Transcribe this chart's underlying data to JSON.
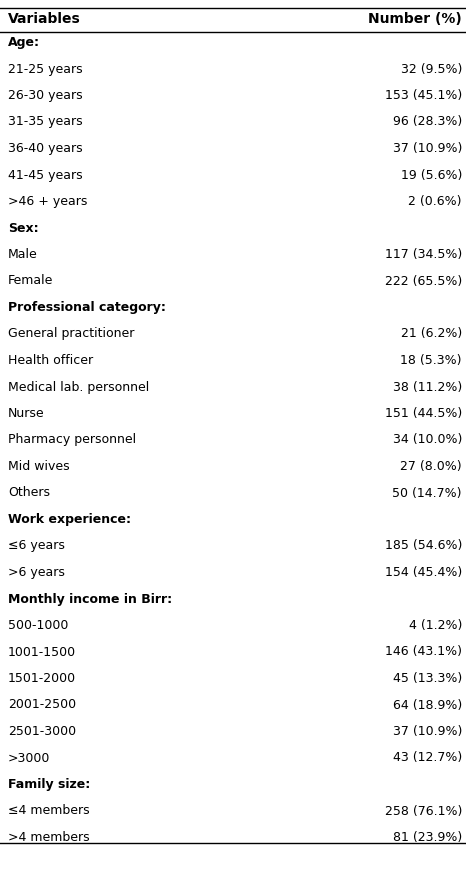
{
  "header": [
    "Variables",
    "Number (%)"
  ],
  "rows": [
    {
      "label": "Age:",
      "value": "",
      "bold": true
    },
    {
      "label": "21-25 years",
      "value": "32 (9.5%)",
      "bold": false
    },
    {
      "label": "26-30 years",
      "value": "153 (45.1%)",
      "bold": false
    },
    {
      "label": "31-35 years",
      "value": "96 (28.3%)",
      "bold": false
    },
    {
      "label": "36-40 years",
      "value": "37 (10.9%)",
      "bold": false
    },
    {
      "label": "41-45 years",
      "value": "19 (5.6%)",
      "bold": false
    },
    {
      "label": ">46 + years",
      "value": "2 (0.6%)",
      "bold": false
    },
    {
      "label": "Sex:",
      "value": "",
      "bold": true
    },
    {
      "label": "Male",
      "value": "117 (34.5%)",
      "bold": false
    },
    {
      "label": "Female",
      "value": "222 (65.5%)",
      "bold": false
    },
    {
      "label": "Professional category:",
      "value": "",
      "bold": true
    },
    {
      "label": "General practitioner",
      "value": "21 (6.2%)",
      "bold": false
    },
    {
      "label": "Health officer",
      "value": "18 (5.3%)",
      "bold": false
    },
    {
      "label": "Medical lab. personnel",
      "value": "38 (11.2%)",
      "bold": false
    },
    {
      "label": "Nurse",
      "value": "151 (44.5%)",
      "bold": false
    },
    {
      "label": "Pharmacy personnel",
      "value": "34 (10.0%)",
      "bold": false
    },
    {
      "label": "Mid wives",
      "value": "27 (8.0%)",
      "bold": false
    },
    {
      "label": "Others",
      "value": "50 (14.7%)",
      "bold": false
    },
    {
      "label": "Work experience:",
      "value": "",
      "bold": true
    },
    {
      "label": "≤6 years",
      "value": "185 (54.6%)",
      "bold": false
    },
    {
      "label": ">6 years",
      "value": "154 (45.4%)",
      "bold": false
    },
    {
      "label": "Monthly income in Birr:",
      "value": "",
      "bold": true
    },
    {
      "label": "500-1000",
      "value": "4 (1.2%)",
      "bold": false
    },
    {
      "label": "1001-1500",
      "value": "146 (43.1%)",
      "bold": false
    },
    {
      "label": "1501-2000",
      "value": "45 (13.3%)",
      "bold": false
    },
    {
      "label": "2001-2500",
      "value": "64 (18.9%)",
      "bold": false
    },
    {
      "label": "2501-3000",
      "value": "37 (10.9%)",
      "bold": false
    },
    {
      "label": ">3000",
      "value": "43 (12.7%)",
      "bold": false
    },
    {
      "label": "Family size:",
      "value": "",
      "bold": true
    },
    {
      "label": "≤4 members",
      "value": "258 (76.1%)",
      "bold": false
    },
    {
      "label": ">4 members",
      "value": "81 (23.9%)",
      "bold": false
    }
  ],
  "bg_color": "#ffffff",
  "line_color": "#000000",
  "text_color": "#000000",
  "font_size": 9.0,
  "header_font_size": 10.0,
  "fig_width": 4.66,
  "fig_height": 8.92,
  "dpi": 100
}
